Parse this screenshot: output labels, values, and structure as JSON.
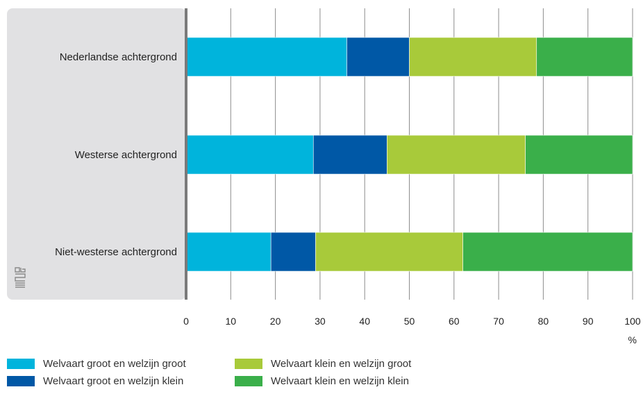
{
  "chart_data": {
    "type": "bar",
    "orientation": "horizontal",
    "stacked": true,
    "categories": [
      "Nederlandse achtergrond",
      "Westerse achtergrond",
      "Niet-westerse achtergrond"
    ],
    "series": [
      {
        "name": "Welvaart groot en welzijn groot",
        "color": "#00b4dc",
        "values": [
          36,
          28.5,
          19
        ]
      },
      {
        "name": "Welvaart groot en welzijn klein",
        "color": "#0058a6",
        "values": [
          14,
          16.5,
          10
        ]
      },
      {
        "name": "Welvaart klein en welzijn groot",
        "color": "#a8ca3a",
        "values": [
          28.5,
          31,
          33
        ]
      },
      {
        "name": "Welvaart klein en welzijn klein",
        "color": "#3aaf4a",
        "values": [
          21.5,
          24,
          38
        ]
      }
    ],
    "xlim": [
      0,
      100
    ],
    "xticks": [
      "0",
      "10",
      "20",
      "30",
      "40",
      "50",
      "60",
      "70",
      "80",
      "90",
      "100"
    ],
    "xunit": "%",
    "grid": true,
    "legend_position": "bottom"
  },
  "logo_name": "cbs-logo-icon"
}
